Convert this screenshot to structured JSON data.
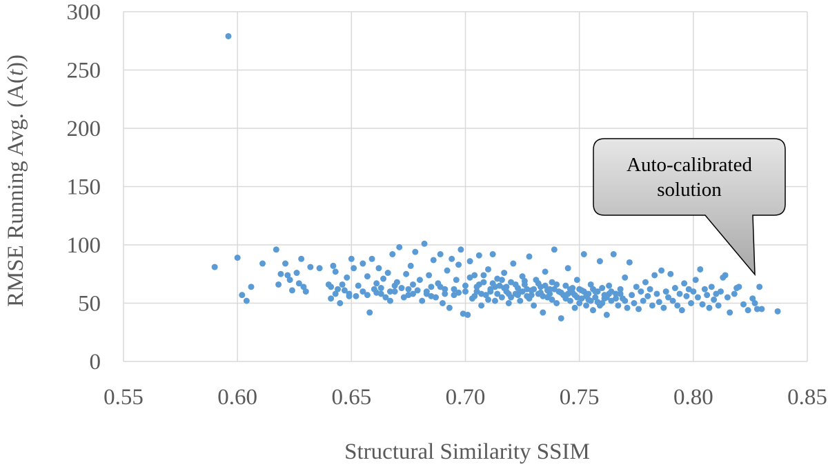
{
  "chart_data": {
    "type": "scatter",
    "title": "",
    "xlabel": "Structural Similarity SSIM",
    "ylabel_parts": [
      "RMSE Running Avg. (A(",
      "t",
      "))"
    ],
    "xlim": [
      0.55,
      0.85
    ],
    "ylim": [
      0,
      300
    ],
    "xticks": [
      0.55,
      0.6,
      0.65,
      0.7,
      0.75,
      0.8,
      0.85
    ],
    "yticks": [
      0,
      50,
      100,
      150,
      200,
      250,
      300
    ],
    "xtick_labels": [
      "0.55",
      "0.60",
      "0.65",
      "0.70",
      "0.75",
      "0.80",
      "0.85"
    ],
    "ytick_labels": [
      "0",
      "50",
      "100",
      "150",
      "200",
      "250",
      "300"
    ],
    "grid": true,
    "legend": "none",
    "point_color": "#5b9bd5",
    "grid_color": "#d9d9d9",
    "annotation": {
      "lines": [
        "Auto-calibrated",
        "solution"
      ],
      "target": {
        "x": 0.829,
        "y": 64
      }
    },
    "points": [
      [
        0.596,
        279
      ],
      [
        0.59,
        81
      ],
      [
        0.6,
        89
      ],
      [
        0.602,
        57
      ],
      [
        0.604,
        52
      ],
      [
        0.606,
        64
      ],
      [
        0.611,
        84
      ],
      [
        0.617,
        96
      ],
      [
        0.618,
        66
      ],
      [
        0.619,
        75
      ],
      [
        0.621,
        84
      ],
      [
        0.622,
        74
      ],
      [
        0.623,
        70
      ],
      [
        0.624,
        61
      ],
      [
        0.626,
        76
      ],
      [
        0.627,
        67
      ],
      [
        0.628,
        88
      ],
      [
        0.629,
        64
      ],
      [
        0.63,
        60
      ],
      [
        0.632,
        81
      ],
      [
        0.636,
        80
      ],
      [
        0.64,
        66
      ],
      [
        0.641,
        54
      ],
      [
        0.642,
        82
      ],
      [
        0.643,
        77
      ],
      [
        0.644,
        62
      ],
      [
        0.645,
        50
      ],
      [
        0.646,
        66
      ],
      [
        0.648,
        72
      ],
      [
        0.649,
        58
      ],
      [
        0.65,
        88
      ],
      [
        0.651,
        80
      ],
      [
        0.652,
        56
      ],
      [
        0.653,
        65
      ],
      [
        0.655,
        84
      ],
      [
        0.657,
        73
      ],
      [
        0.658,
        42
      ],
      [
        0.659,
        88
      ],
      [
        0.66,
        62
      ],
      [
        0.661,
        67
      ],
      [
        0.662,
        80
      ],
      [
        0.663,
        58
      ],
      [
        0.664,
        71
      ],
      [
        0.665,
        55
      ],
      [
        0.666,
        76
      ],
      [
        0.667,
        52
      ],
      [
        0.668,
        92
      ],
      [
        0.669,
        60
      ],
      [
        0.67,
        68
      ],
      [
        0.671,
        98
      ],
      [
        0.672,
        63
      ],
      [
        0.673,
        55
      ],
      [
        0.674,
        75
      ],
      [
        0.675,
        57
      ],
      [
        0.676,
        82
      ],
      [
        0.677,
        66
      ],
      [
        0.678,
        94
      ],
      [
        0.679,
        61
      ],
      [
        0.68,
        70
      ],
      [
        0.681,
        52
      ],
      [
        0.682,
        101
      ],
      [
        0.683,
        58
      ],
      [
        0.684,
        74
      ],
      [
        0.685,
        64
      ],
      [
        0.686,
        87
      ],
      [
        0.687,
        55
      ],
      [
        0.688,
        67
      ],
      [
        0.689,
        92
      ],
      [
        0.69,
        50
      ],
      [
        0.691,
        62
      ],
      [
        0.692,
        78
      ],
      [
        0.693,
        46
      ],
      [
        0.694,
        88
      ],
      [
        0.695,
        57
      ],
      [
        0.696,
        70
      ],
      [
        0.697,
        83
      ],
      [
        0.698,
        96
      ],
      [
        0.699,
        41
      ],
      [
        0.7,
        65
      ],
      [
        0.701,
        40
      ],
      [
        0.702,
        86
      ],
      [
        0.703,
        54
      ],
      [
        0.704,
        74
      ],
      [
        0.705,
        60
      ],
      [
        0.706,
        91
      ],
      [
        0.707,
        48
      ],
      [
        0.708,
        68
      ],
      [
        0.709,
        57
      ],
      [
        0.71,
        79
      ],
      [
        0.711,
        62
      ],
      [
        0.712,
        92
      ],
      [
        0.713,
        52
      ],
      [
        0.714,
        71
      ],
      [
        0.715,
        65
      ],
      [
        0.716,
        55
      ],
      [
        0.717,
        76
      ],
      [
        0.718,
        60
      ],
      [
        0.719,
        50
      ],
      [
        0.72,
        68
      ],
      [
        0.721,
        84
      ],
      [
        0.722,
        58
      ],
      [
        0.723,
        63
      ],
      [
        0.724,
        52
      ],
      [
        0.725,
        73
      ],
      [
        0.726,
        66
      ],
      [
        0.727,
        56
      ],
      [
        0.728,
        90
      ],
      [
        0.729,
        61
      ],
      [
        0.73,
        48
      ],
      [
        0.731,
        70
      ],
      [
        0.732,
        58
      ],
      [
        0.733,
        64
      ],
      [
        0.734,
        42
      ],
      [
        0.735,
        77
      ],
      [
        0.736,
        55
      ],
      [
        0.737,
        62
      ],
      [
        0.738,
        68
      ],
      [
        0.739,
        96
      ],
      [
        0.74,
        50
      ],
      [
        0.741,
        60
      ],
      [
        0.742,
        37
      ],
      [
        0.743,
        57
      ],
      [
        0.744,
        65
      ],
      [
        0.745,
        80
      ],
      [
        0.746,
        52
      ],
      [
        0.747,
        59
      ],
      [
        0.748,
        46
      ],
      [
        0.749,
        70
      ],
      [
        0.75,
        62
      ],
      [
        0.751,
        54
      ],
      [
        0.752,
        92
      ],
      [
        0.753,
        48
      ],
      [
        0.754,
        58
      ],
      [
        0.755,
        66
      ],
      [
        0.756,
        44
      ],
      [
        0.757,
        55
      ],
      [
        0.758,
        60
      ],
      [
        0.759,
        86
      ],
      [
        0.76,
        50
      ],
      [
        0.761,
        57
      ],
      [
        0.762,
        40
      ],
      [
        0.763,
        65
      ],
      [
        0.764,
        52
      ],
      [
        0.765,
        92
      ],
      [
        0.766,
        58
      ],
      [
        0.767,
        48
      ],
      [
        0.768,
        62
      ],
      [
        0.769,
        54
      ],
      [
        0.77,
        72
      ],
      [
        0.771,
        46
      ],
      [
        0.772,
        85
      ],
      [
        0.773,
        57
      ],
      [
        0.774,
        50
      ],
      [
        0.775,
        64
      ],
      [
        0.776,
        45
      ],
      [
        0.777,
        60
      ],
      [
        0.778,
        52
      ],
      [
        0.779,
        68
      ],
      [
        0.78,
        56
      ],
      [
        0.781,
        62
      ],
      [
        0.782,
        48
      ],
      [
        0.783,
        74
      ],
      [
        0.784,
        58
      ],
      [
        0.785,
        51
      ],
      [
        0.786,
        78
      ],
      [
        0.787,
        46
      ],
      [
        0.788,
        60
      ],
      [
        0.789,
        55
      ],
      [
        0.79,
        75
      ],
      [
        0.791,
        52
      ],
      [
        0.792,
        63
      ],
      [
        0.793,
        48
      ],
      [
        0.794,
        58
      ],
      [
        0.795,
        44
      ],
      [
        0.796,
        67
      ],
      [
        0.797,
        56
      ],
      [
        0.798,
        62
      ],
      [
        0.799,
        50
      ],
      [
        0.8,
        60
      ],
      [
        0.801,
        70
      ],
      [
        0.802,
        55
      ],
      [
        0.803,
        79
      ],
      [
        0.804,
        49
      ],
      [
        0.805,
        62
      ],
      [
        0.806,
        57
      ],
      [
        0.807,
        46
      ],
      [
        0.808,
        64
      ],
      [
        0.809,
        53
      ],
      [
        0.81,
        58
      ],
      [
        0.811,
        48
      ],
      [
        0.812,
        60
      ],
      [
        0.813,
        72
      ],
      [
        0.814,
        74
      ],
      [
        0.815,
        55
      ],
      [
        0.816,
        42
      ],
      [
        0.818,
        58
      ],
      [
        0.819,
        63
      ],
      [
        0.82,
        64
      ],
      [
        0.822,
        49
      ],
      [
        0.824,
        44
      ],
      [
        0.826,
        54
      ],
      [
        0.827,
        50
      ],
      [
        0.828,
        45
      ],
      [
        0.829,
        64
      ],
      [
        0.83,
        45
      ],
      [
        0.837,
        43
      ],
      [
        0.7,
        60
      ],
      [
        0.702,
        72
      ],
      [
        0.704,
        56
      ],
      [
        0.706,
        66
      ],
      [
        0.708,
        74
      ],
      [
        0.71,
        53
      ],
      [
        0.712,
        67
      ],
      [
        0.714,
        58
      ],
      [
        0.716,
        70
      ],
      [
        0.718,
        64
      ],
      [
        0.72,
        55
      ],
      [
        0.722,
        66
      ],
      [
        0.724,
        60
      ],
      [
        0.726,
        69
      ],
      [
        0.728,
        54
      ],
      [
        0.73,
        62
      ],
      [
        0.732,
        67
      ],
      [
        0.734,
        56
      ],
      [
        0.736,
        61
      ],
      [
        0.738,
        53
      ],
      [
        0.74,
        66
      ],
      [
        0.742,
        59
      ],
      [
        0.744,
        54
      ],
      [
        0.746,
        62
      ],
      [
        0.748,
        57
      ],
      [
        0.75,
        50
      ],
      [
        0.752,
        60
      ],
      [
        0.754,
        53
      ],
      [
        0.756,
        62
      ],
      [
        0.758,
        51
      ],
      [
        0.76,
        63
      ],
      [
        0.762,
        55
      ],
      [
        0.764,
        60
      ],
      [
        0.766,
        54
      ],
      [
        0.768,
        58
      ],
      [
        0.77,
        52
      ],
      [
        0.753,
        56
      ],
      [
        0.755,
        52
      ],
      [
        0.757,
        60
      ],
      [
        0.759,
        48
      ],
      [
        0.761,
        54
      ],
      [
        0.763,
        58
      ],
      [
        0.745,
        58
      ],
      [
        0.747,
        63
      ],
      [
        0.749,
        55
      ],
      [
        0.751,
        61
      ],
      [
        0.733,
        59
      ],
      [
        0.735,
        65
      ],
      [
        0.737,
        58
      ],
      [
        0.739,
        62
      ],
      [
        0.727,
        62
      ],
      [
        0.729,
        57
      ],
      [
        0.723,
        57
      ],
      [
        0.725,
        60
      ],
      [
        0.717,
        63
      ],
      [
        0.719,
        58
      ],
      [
        0.711,
        60
      ],
      [
        0.713,
        64
      ],
      [
        0.705,
        64
      ],
      [
        0.707,
        58
      ],
      [
        0.695,
        62
      ],
      [
        0.697,
        59
      ],
      [
        0.689,
        64
      ],
      [
        0.691,
        58
      ],
      [
        0.683,
        60
      ],
      [
        0.685,
        56
      ],
      [
        0.675,
        62
      ],
      [
        0.677,
        58
      ],
      [
        0.667,
        60
      ],
      [
        0.669,
        65
      ],
      [
        0.661,
        59
      ],
      [
        0.663,
        63
      ],
      [
        0.655,
        60
      ],
      [
        0.657,
        57
      ],
      [
        0.647,
        61
      ],
      [
        0.649,
        56
      ],
      [
        0.641,
        64
      ],
      [
        0.643,
        58
      ]
    ]
  }
}
